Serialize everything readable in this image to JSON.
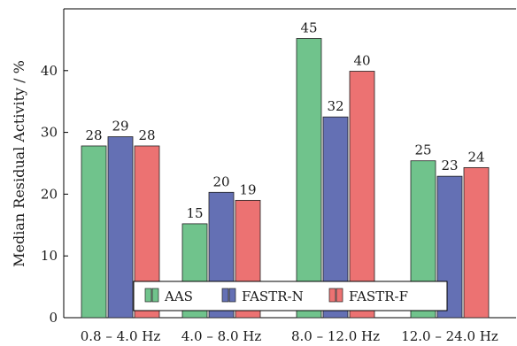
{
  "chart_data": {
    "type": "bar",
    "title": "",
    "xlabel": "",
    "ylabel": "Median Residual Activity / %",
    "ylim": [
      0,
      50
    ],
    "yticks": [
      0,
      10,
      20,
      30,
      40
    ],
    "grid": false,
    "legend_position": "bottom-center",
    "categories": [
      "0.8 – 4.0 Hz",
      "4.0 – 8.0 Hz",
      "8.0 – 12.0 Hz",
      "12.0 – 24.0 Hz"
    ],
    "series": [
      {
        "name": "AAS",
        "color": "#70c38c",
        "values": [
          27.8,
          15.2,
          45.2,
          25.4
        ],
        "labels": [
          "28",
          "15",
          "45",
          "25"
        ]
      },
      {
        "name": "FASTR-N",
        "color": "#6470b4",
        "values": [
          29.3,
          20.3,
          32.5,
          22.9
        ],
        "labels": [
          "29",
          "20",
          "32",
          "23"
        ]
      },
      {
        "name": "FASTR-F",
        "color": "#ec7272",
        "values": [
          27.8,
          19.0,
          39.9,
          24.3
        ],
        "labels": [
          "28",
          "19",
          "40",
          "24"
        ]
      }
    ]
  }
}
